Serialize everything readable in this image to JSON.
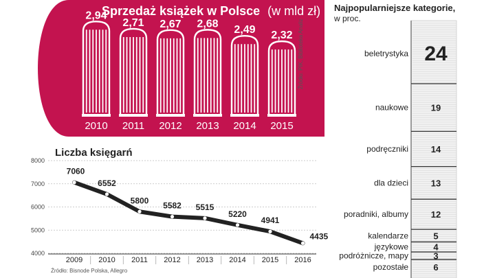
{
  "colors": {
    "accent": "#c3134f",
    "line": "#222222",
    "paper": "#ffffff",
    "notebook": "#f1f1f1"
  },
  "sales": {
    "title": "Sprzedaż książek w Polsce",
    "unit": "(w mld zł)",
    "source": "Źródło: PIK, Biblioteka Analiz"
  },
  "bookstores": {
    "title": "Liczba księgarń",
    "source": "Źródło: Bisnode Polska, Allegro"
  },
  "categories_panel": {
    "title": "Najpopularniejsze kategorie,",
    "subtitle": "w proc."
  },
  "chart_data": [
    {
      "type": "bar",
      "title": "Sprzedaż książek w Polsce",
      "unit": "(w mld zł)",
      "categories": [
        "2010",
        "2011",
        "2012",
        "2013",
        "2014",
        "2015"
      ],
      "values": [
        2.94,
        2.71,
        2.67,
        2.68,
        2.49,
        2.32
      ],
      "value_labels": [
        "2,94",
        "2,71",
        "2,67",
        "2,68",
        "2,49",
        "2,32"
      ]
    },
    {
      "type": "line",
      "title": "Liczba księgarń",
      "x": [
        "2009",
        "2010",
        "2011",
        "2012",
        "2013",
        "2014",
        "2015",
        "2016"
      ],
      "values": [
        7060,
        6552,
        5800,
        5582,
        5515,
        5220,
        4941,
        4435
      ],
      "ylim": [
        4000,
        8000
      ],
      "yticks": [
        "4000",
        "5000",
        "6000",
        "7000",
        "8000"
      ],
      "grid": true
    },
    {
      "type": "table",
      "title": "Najpopularniejsze kategorie, w proc.",
      "categories": [
        "beletrystyka",
        "naukowe",
        "podręczniki",
        "dla dzieci",
        "poradniki, albumy",
        "kalendarze",
        "językowe",
        "podróżnicze, mapy",
        "pozostałe"
      ],
      "values": [
        24,
        19,
        14,
        13,
        12,
        5,
        4,
        3,
        6
      ]
    }
  ]
}
